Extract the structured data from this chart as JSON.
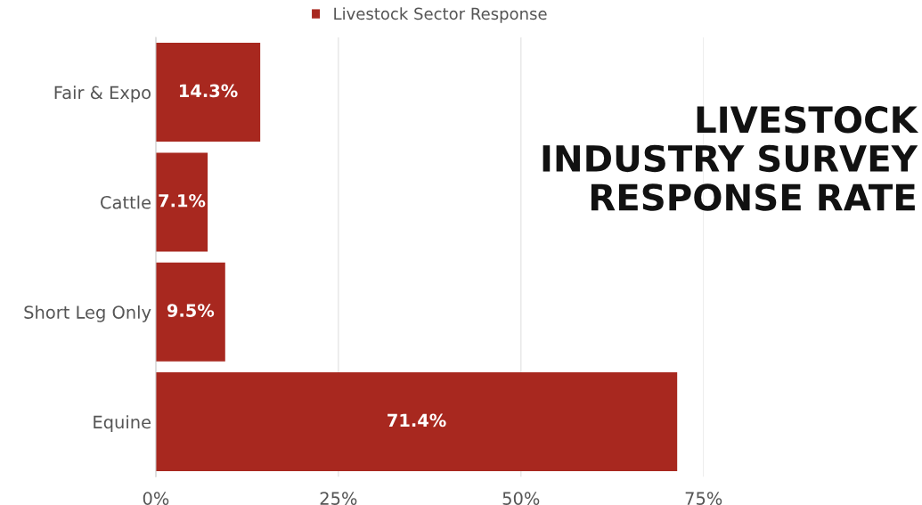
{
  "chart_data": {
    "type": "bar",
    "orientation": "horizontal",
    "title": "LIVESTOCK\nINDUSTRY SURVEY\nRESPONSE RATE",
    "categories": [
      "Fair & Expo",
      "Cattle",
      "Short Leg Only",
      "Equine"
    ],
    "series": [
      {
        "name": "Livestock Sector Response",
        "color": "#a8281f",
        "values": [
          14.3,
          7.1,
          9.5,
          71.4
        ],
        "value_labels": [
          "14.3%",
          "7.1%",
          "9.5%",
          "71.4%"
        ]
      }
    ],
    "xlim": [
      0,
      75
    ],
    "xticks": [
      {
        "value": 0,
        "label": "0%"
      },
      {
        "value": 25,
        "label": "25%"
      },
      {
        "value": 50,
        "label": "50%"
      },
      {
        "value": 75,
        "label": "75%"
      }
    ],
    "grid": "x",
    "legend": "top"
  }
}
